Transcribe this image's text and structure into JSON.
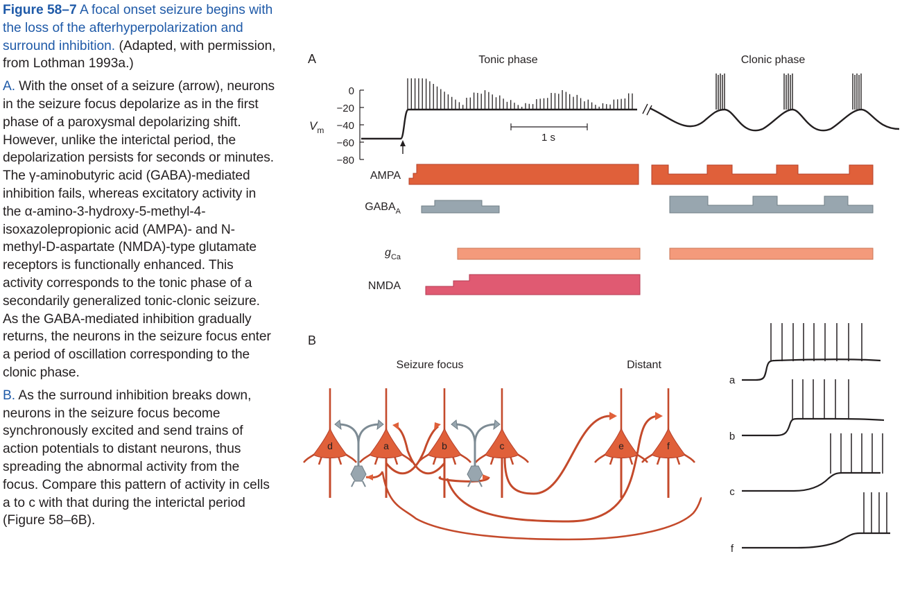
{
  "caption": {
    "figure_number": "Figure 58–7",
    "title": "A focal onset seizure begins with the loss of the afterhyperpolarization and surround inhibition.",
    "adapted": "(Adapted, with permission, from Lothman 1993a.)",
    "para_a": {
      "label": "A.",
      "text": "With the onset of a seizure (arrow), neurons in the seizure focus depolarize as in the first phase of a paroxysmal depolarizing shift. However, unlike the interictal period, the depolarization persists for seconds or minutes. The γ-aminobutyric acid (GABA)-mediated inhibition fails, whereas excitatory activity in the α-amino-3-hydroxy-5-methyl-4-isoxazolepropionic acid (AMPA)- and N-methyl-D-aspartate (NMDA)-type glutamate receptors is functionally enhanced. This activity corresponds to the tonic phase of a secondarily generalized tonic-clonic seizure. As the GABA-mediated inhibition gradually returns, the neurons in the seizure focus enter a period of oscillation corresponding to the clonic phase."
    },
    "para_b": {
      "label": "B.",
      "text": "As the surround inhibition breaks down, neurons in the seizure focus become synchronously excited and send trains of action potentials to distant neurons, thus spreading the abnormal activity from the focus. Compare this pattern of activity in cells a to c with that during the interictal period (Figure 58–6B)."
    }
  },
  "panel_a": {
    "label": "A",
    "tonic_phase": "Tonic phase",
    "clonic_phase": "Clonic phase",
    "vm_label": "V",
    "vm_sub": "m",
    "y_ticks": [
      "0",
      "−20",
      "−40",
      "−60",
      "−80"
    ],
    "scale_bar": "1 s",
    "bars": {
      "ampa": "AMPA",
      "gaba": "GABA",
      "gaba_sub": "A",
      "gca": "g",
      "gca_sub": "Ca",
      "nmda": "NMDA"
    }
  },
  "panel_b": {
    "label": "B",
    "seizure_focus": "Seizure focus",
    "distant": "Distant",
    "neurons": [
      "d",
      "a",
      "b",
      "c",
      "e",
      "f"
    ],
    "traces": [
      "a",
      "b",
      "c",
      "f"
    ]
  },
  "colors": {
    "ampa": "#e0603a",
    "gaba": "#98a6af",
    "gca": "#f49a7b",
    "nmda": "#e05a72",
    "neuron": "#e0603a",
    "axon": "#c44a2b",
    "interneuron": "#7d8b94",
    "caption_blue": "#1f5aa8"
  }
}
